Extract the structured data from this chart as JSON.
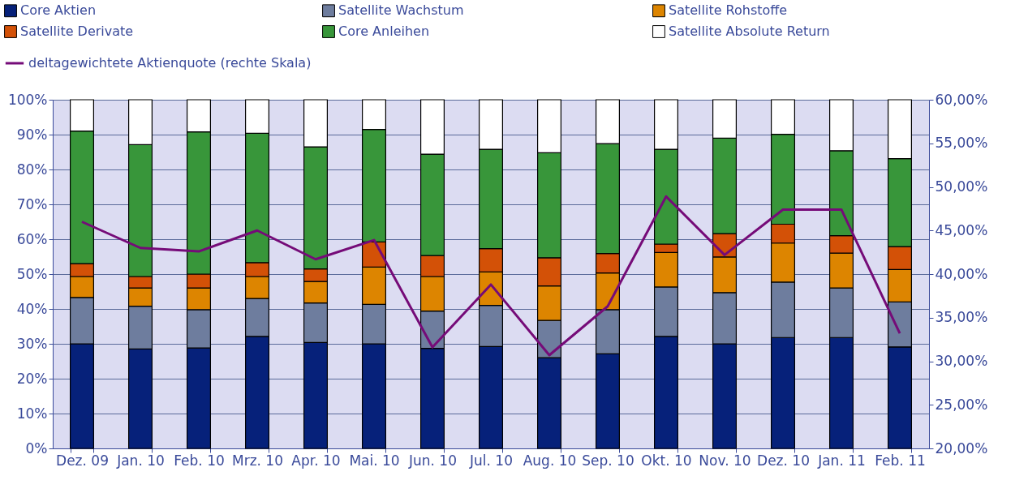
{
  "chart_data": {
    "type": "bar",
    "stacked": true,
    "categories": [
      "Dez. 09",
      "Jan. 10",
      "Feb. 10",
      "Mrz. 10",
      "Apr. 10",
      "Mai. 10",
      "Jun. 10",
      "Jul. 10",
      "Aug. 10",
      "Sep. 10",
      "Okt. 10",
      "Nov. 10",
      "Dez. 10",
      "Jan. 11",
      "Feb. 11"
    ],
    "series": [
      {
        "name": "Core Aktien",
        "color": "#06217a",
        "values": [
          30,
          28.5,
          28.8,
          32.1,
          30.4,
          30,
          28.7,
          29.2,
          26,
          27.1,
          32.1,
          30,
          31.8,
          31.8,
          29.1
        ]
      },
      {
        "name": "Satellite Wachstum",
        "color": "#6e7d9e",
        "values": [
          13.3,
          12.3,
          11,
          10.9,
          11.3,
          11.3,
          10.7,
          11.8,
          10.7,
          12.7,
          14.2,
          14.7,
          15.9,
          14.2,
          12.9
        ]
      },
      {
        "name": "Satellite Rohstoffe",
        "color": "#dd8500",
        "values": [
          6,
          5.2,
          6.2,
          6.3,
          6.2,
          10.7,
          9.9,
          9.6,
          9.9,
          10.5,
          9.9,
          10.2,
          11.2,
          10,
          9.3
        ]
      },
      {
        "name": "Satellite Derivate",
        "color": "#d35107",
        "values": [
          3.7,
          3.3,
          4,
          4,
          3.6,
          7.2,
          6,
          6.7,
          8.1,
          5.6,
          2.4,
          6.7,
          5.4,
          5,
          6.6
        ]
      },
      {
        "name": "Core Anleihen",
        "color": "#38963a",
        "values": [
          38,
          37.8,
          40.8,
          37.1,
          35,
          32.3,
          29.1,
          28.5,
          30.1,
          31.5,
          27.2,
          27.4,
          25.8,
          24.4,
          25.2
        ]
      },
      {
        "name": "Satellite Absolute Return",
        "color": "#ffffff",
        "values": [
          9,
          12.9,
          9.2,
          9.6,
          13.5,
          8.5,
          15.6,
          14.2,
          15.2,
          12.6,
          14.2,
          11,
          9.9,
          14.6,
          16.9
        ]
      },
      {
        "name": "deltagewichtete Aktienquote (rechte Skala)",
        "type": "line",
        "axis": "y2",
        "color": "#750b78",
        "values": [
          46.0,
          43.0,
          42.6,
          45.0,
          41.7,
          43.9,
          31.6,
          38.8,
          30.7,
          36.3,
          48.9,
          42.2,
          47.4,
          47.4,
          33.2
        ]
      }
    ],
    "ylim": [
      0,
      100
    ],
    "yticks": [
      {
        "value": 0,
        "label": "0%"
      },
      {
        "value": 10,
        "label": "10%"
      },
      {
        "value": 20,
        "label": "20%"
      },
      {
        "value": 30,
        "label": "30%"
      },
      {
        "value": 40,
        "label": "40%"
      },
      {
        "value": 50,
        "label": "50%"
      },
      {
        "value": 60,
        "label": "60%"
      },
      {
        "value": 70,
        "label": "70%"
      },
      {
        "value": 80,
        "label": "80%"
      },
      {
        "value": 90,
        "label": "90%"
      },
      {
        "value": 100,
        "label": "100%"
      }
    ],
    "y2lim": [
      20,
      60
    ],
    "y2ticks": [
      {
        "value": 20,
        "label": "20,00%"
      },
      {
        "value": 25,
        "label": "25,00%"
      },
      {
        "value": 30,
        "label": "30,00%"
      },
      {
        "value": 35,
        "label": "35,00%"
      },
      {
        "value": 40,
        "label": "40,00%"
      },
      {
        "value": 45,
        "label": "45,00%"
      },
      {
        "value": 50,
        "label": "50,00%"
      },
      {
        "value": 55,
        "label": "55,00%"
      },
      {
        "value": 60,
        "label": "60,00%"
      }
    ],
    "grid": "y",
    "legend": "top",
    "marker": "none",
    "line_style": "solid"
  }
}
